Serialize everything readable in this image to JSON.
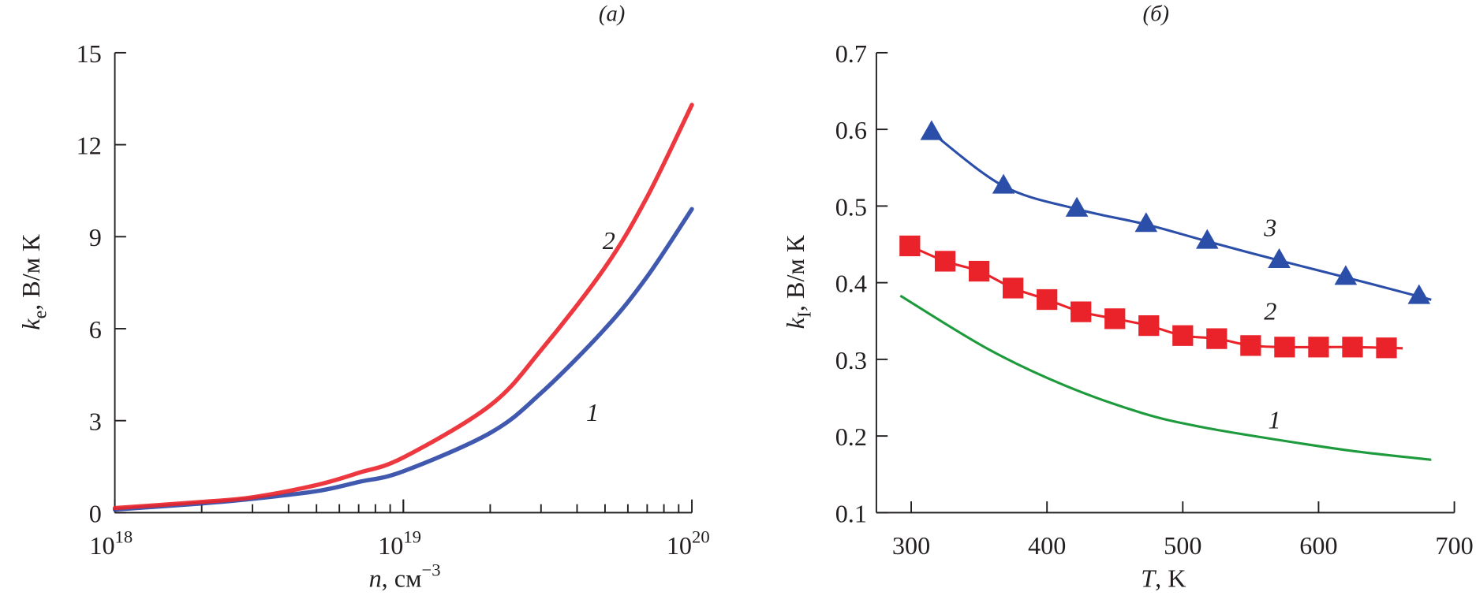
{
  "chart_data": [
    {
      "panel_label": "(a)",
      "type": "line",
      "xlabel": {
        "var": "n",
        "unit": ", см",
        "exp": "−3"
      },
      "ylabel": {
        "var": "k",
        "sub": "e",
        "unit": ", В/м К"
      },
      "x_scale": "log",
      "xlim": [
        1e+18,
        1e+20
      ],
      "ylim": [
        0,
        15
      ],
      "x_ticks": [
        {
          "base": "10",
          "exp": "18"
        },
        {
          "base": "10",
          "exp": "19"
        },
        {
          "base": "10",
          "exp": "20"
        }
      ],
      "y_ticks": [
        "0",
        "3",
        "6",
        "9",
        "12",
        "15"
      ],
      "grid": false,
      "series": [
        {
          "name": "1",
          "color": "#2b47a6",
          "x": [
            1e+18,
            2e+18,
            3e+18,
            5e+18,
            7e+18,
            1e+19,
            2e+19,
            3e+19,
            5e+19,
            7e+19,
            1e+20
          ],
          "y": [
            0.1,
            0.3,
            0.45,
            0.7,
            1.0,
            1.35,
            2.6,
            3.9,
            6.0,
            7.7,
            9.9
          ]
        },
        {
          "name": "2",
          "color": "#ea2229",
          "x": [
            1e+18,
            2e+18,
            3e+18,
            5e+18,
            7e+18,
            1e+19,
            2e+19,
            3e+19,
            5e+19,
            7e+19,
            1e+20
          ],
          "y": [
            0.15,
            0.35,
            0.5,
            0.9,
            1.3,
            1.8,
            3.5,
            5.3,
            8.0,
            10.3,
            13.3
          ]
        }
      ]
    },
    {
      "panel_label": "(б)",
      "type": "line",
      "xlabel": {
        "var": "T",
        "unit": ", K"
      },
      "ylabel": {
        "var": "k",
        "sub": "I",
        "unit": ", В/м К"
      },
      "xlim": [
        300,
        700
      ],
      "ylim": [
        0.1,
        0.7
      ],
      "x_ticks": [
        "300",
        "400",
        "500",
        "600",
        "700"
      ],
      "y_ticks": [
        "0.1",
        "0.2",
        "0.3",
        "0.4",
        "0.5",
        "0.6",
        "0.7"
      ],
      "grid": false,
      "series": [
        {
          "name": "1",
          "color": "#1d9a3c",
          "marker": "none",
          "x": [
            292,
            356,
            413,
            470,
            513,
            570,
            627,
            683
          ],
          "y": [
            0.383,
            0.314,
            0.266,
            0.23,
            0.212,
            0.195,
            0.18,
            0.169
          ]
        },
        {
          "name": "2",
          "color": "#ea2229",
          "marker": "square",
          "x": [
            299,
            325,
            350,
            375,
            400,
            425,
            450,
            475,
            500,
            525,
            550,
            575,
            600,
            625,
            650
          ],
          "y": [
            0.448,
            0.428,
            0.415,
            0.393,
            0.378,
            0.362,
            0.353,
            0.344,
            0.331,
            0.327,
            0.318,
            0.316,
            0.316,
            0.316,
            0.315
          ],
          "line_end_x": 662
        },
        {
          "name": "3",
          "color": "#2b4ea8",
          "marker": "triangle",
          "x": [
            315,
            368,
            422,
            473,
            518,
            571,
            620,
            674
          ],
          "y": [
            0.596,
            0.526,
            0.496,
            0.476,
            0.454,
            0.429,
            0.407,
            0.382
          ],
          "line_end_x": 683
        }
      ]
    }
  ]
}
